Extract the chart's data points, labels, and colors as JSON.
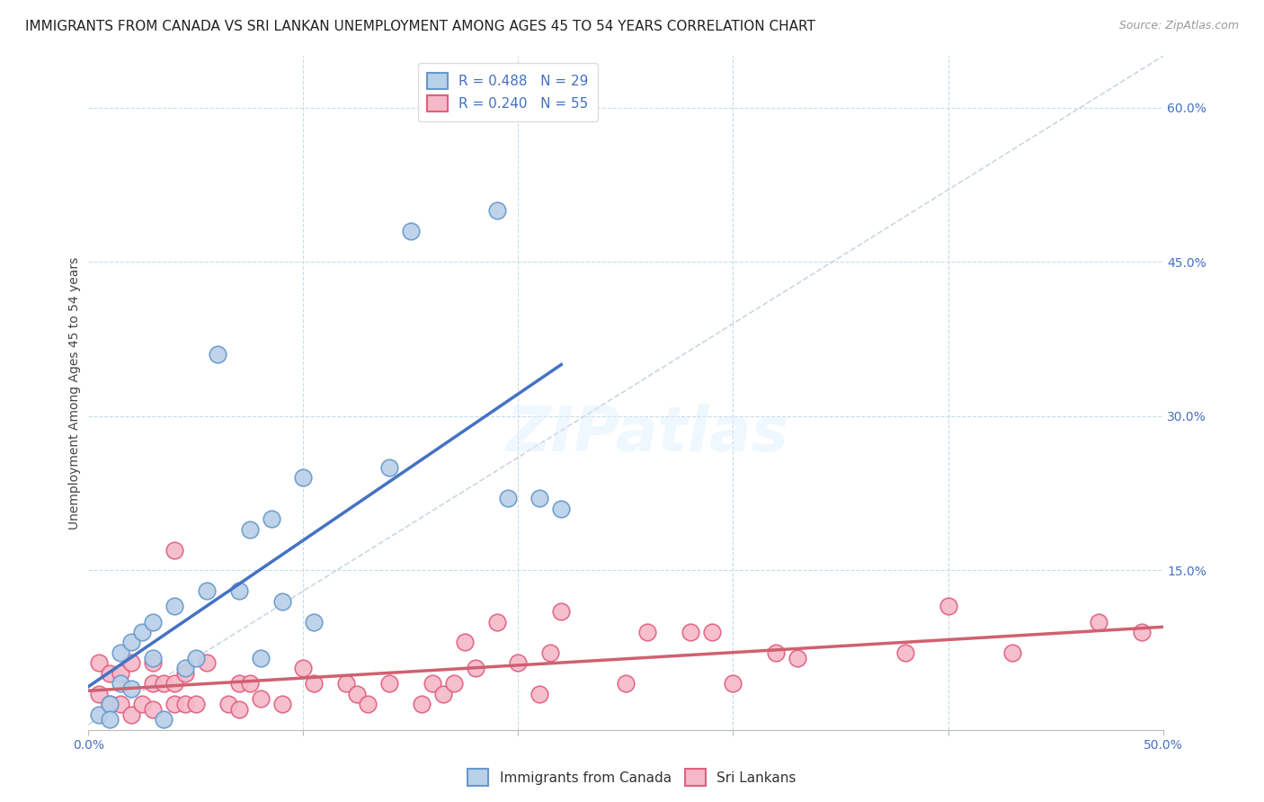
{
  "title": "IMMIGRANTS FROM CANADA VS SRI LANKAN UNEMPLOYMENT AMONG AGES 45 TO 54 YEARS CORRELATION CHART",
  "source": "Source: ZipAtlas.com",
  "xlabel": "",
  "ylabel": "Unemployment Among Ages 45 to 54 years",
  "xlim": [
    0.0,
    0.5
  ],
  "ylim": [
    -0.005,
    0.65
  ],
  "xticks": [
    0.0,
    0.1,
    0.2,
    0.3,
    0.4,
    0.5
  ],
  "xtick_labels": [
    "0.0%",
    "",
    "",
    "",
    "",
    "50.0%"
  ],
  "yticks_right": [
    0.15,
    0.3,
    0.45,
    0.6
  ],
  "ytick_right_labels": [
    "15.0%",
    "30.0%",
    "45.0%",
    "60.0%"
  ],
  "blue_R": 0.488,
  "blue_N": 29,
  "pink_R": 0.24,
  "pink_N": 55,
  "blue_label": "Immigrants from Canada",
  "pink_label": "Sri Lankans",
  "blue_color": "#b8d0e8",
  "pink_color": "#f5b8c8",
  "blue_edge": "#6699cc",
  "pink_edge": "#e06080",
  "blue_line_color": "#4472C4",
  "pink_line_color": "#d06070",
  "blue_scatter_x": [
    0.005,
    0.01,
    0.01,
    0.015,
    0.015,
    0.02,
    0.02,
    0.025,
    0.03,
    0.03,
    0.035,
    0.04,
    0.045,
    0.05,
    0.055,
    0.06,
    0.07,
    0.075,
    0.08,
    0.085,
    0.09,
    0.1,
    0.105,
    0.14,
    0.15,
    0.19,
    0.195,
    0.21,
    0.22
  ],
  "blue_scatter_y": [
    0.01,
    0.02,
    0.005,
    0.04,
    0.07,
    0.08,
    0.035,
    0.09,
    0.065,
    0.1,
    0.005,
    0.115,
    0.055,
    0.065,
    0.13,
    0.36,
    0.13,
    0.19,
    0.065,
    0.2,
    0.12,
    0.24,
    0.1,
    0.25,
    0.48,
    0.5,
    0.22,
    0.22,
    0.21
  ],
  "pink_scatter_x": [
    0.005,
    0.005,
    0.01,
    0.01,
    0.015,
    0.015,
    0.02,
    0.02,
    0.025,
    0.03,
    0.03,
    0.03,
    0.035,
    0.04,
    0.04,
    0.04,
    0.045,
    0.045,
    0.05,
    0.055,
    0.065,
    0.07,
    0.07,
    0.075,
    0.08,
    0.09,
    0.1,
    0.105,
    0.12,
    0.125,
    0.13,
    0.14,
    0.155,
    0.16,
    0.165,
    0.17,
    0.175,
    0.18,
    0.19,
    0.2,
    0.21,
    0.215,
    0.22,
    0.25,
    0.26,
    0.28,
    0.29,
    0.3,
    0.32,
    0.33,
    0.38,
    0.4,
    0.43,
    0.47,
    0.49
  ],
  "pink_scatter_y": [
    0.03,
    0.06,
    0.02,
    0.05,
    0.02,
    0.05,
    0.01,
    0.06,
    0.02,
    0.015,
    0.04,
    0.06,
    0.04,
    0.02,
    0.04,
    0.17,
    0.02,
    0.05,
    0.02,
    0.06,
    0.02,
    0.04,
    0.015,
    0.04,
    0.025,
    0.02,
    0.055,
    0.04,
    0.04,
    0.03,
    0.02,
    0.04,
    0.02,
    0.04,
    0.03,
    0.04,
    0.08,
    0.055,
    0.1,
    0.06,
    0.03,
    0.07,
    0.11,
    0.04,
    0.09,
    0.09,
    0.09,
    0.04,
    0.07,
    0.065,
    0.07,
    0.115,
    0.07,
    0.1,
    0.09
  ],
  "background_color": "#ffffff",
  "grid_color": "#c8dce8",
  "title_fontsize": 11,
  "axis_label_fontsize": 10,
  "tick_fontsize": 10,
  "legend_fontsize": 11
}
